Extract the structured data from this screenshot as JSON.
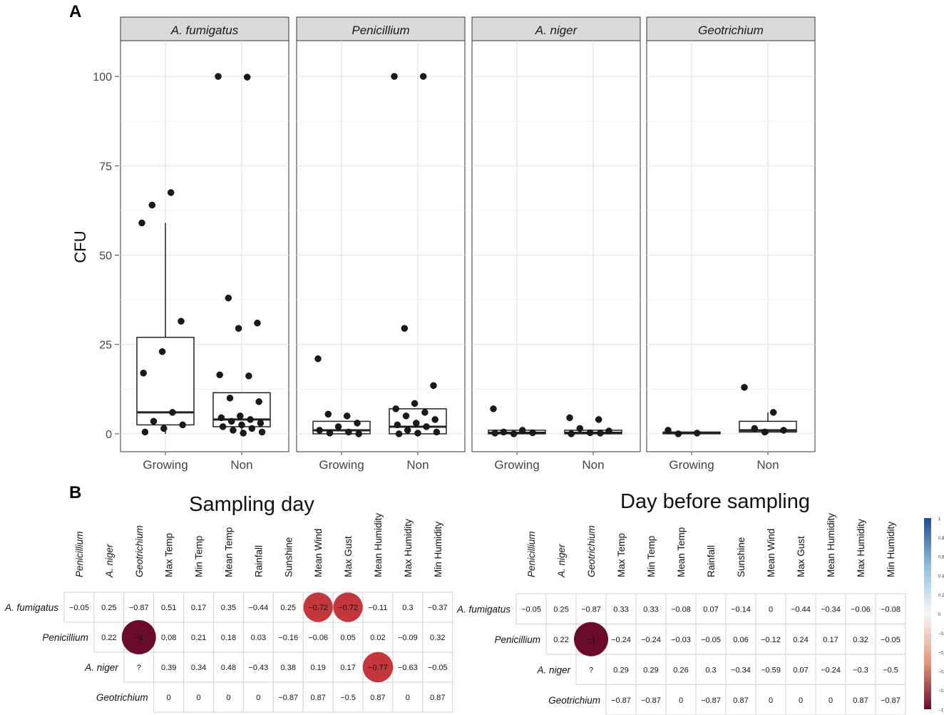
{
  "panel_labels": {
    "a": "A",
    "b": "B"
  },
  "chart_data": [
    {
      "type": "boxplot",
      "panel": "A",
      "ylabel": "CFU",
      "xlabel": "",
      "ylim": [
        -5,
        110
      ],
      "yticks": [
        0,
        25,
        50,
        75,
        100
      ],
      "grid": true,
      "categories": [
        "Growing",
        "Non"
      ],
      "facets": [
        {
          "name": "A. fumigatus",
          "groups": [
            {
              "category": "Growing",
              "q1": 2.5,
              "median": 6,
              "q3": 27,
              "whisker_low": 0,
              "whisker_high": 59,
              "points": [
                59,
                67.5,
                64,
                31.5,
                23,
                17,
                6,
                3.5,
                2.5,
                1.5,
                0.5
              ]
            },
            {
              "category": "Non",
              "q1": 2,
              "median": 4,
              "q3": 11.5,
              "whisker_low": 0,
              "whisker_high": 11.5,
              "points": [
                100,
                99.8,
                38,
                31,
                29.5,
                16.5,
                16.2,
                10,
                9,
                5,
                4.5,
                4,
                3.5,
                3,
                2.5,
                2,
                1.5,
                1,
                0.5,
                0.2
              ]
            }
          ]
        },
        {
          "name": "Penicillium",
          "groups": [
            {
              "category": "Growing",
              "q1": 0,
              "median": 1,
              "q3": 3.5,
              "whisker_low": 0,
              "whisker_high": 3.5,
              "points": [
                21,
                5,
                5.5,
                3,
                2,
                1,
                0.5,
                0.2,
                0
              ]
            },
            {
              "category": "Non",
              "q1": 0,
              "median": 2,
              "q3": 7,
              "whisker_low": 0,
              "whisker_high": 7,
              "points": [
                100,
                100,
                29.5,
                13.5,
                8.5,
                7,
                6,
                5,
                4,
                3,
                2.5,
                2,
                1,
                0.5,
                0.2,
                0
              ]
            }
          ]
        },
        {
          "name": "A. niger",
          "groups": [
            {
              "category": "Growing",
              "q1": 0,
              "median": 0.3,
              "q3": 1,
              "whisker_low": 0,
              "whisker_high": 1,
              "points": [
                7,
                1,
                0.5,
                0.3,
                0,
                0.2
              ]
            },
            {
              "category": "Non",
              "q1": 0,
              "median": 0.3,
              "q3": 1,
              "whisker_low": 0,
              "whisker_high": 1,
              "points": [
                4.5,
                4,
                1.5,
                0.8,
                0.3,
                0,
                0.2
              ]
            }
          ]
        },
        {
          "name": "Geotrichium",
          "groups": [
            {
              "category": "Growing",
              "q1": 0,
              "median": 0.2,
              "q3": 0.5,
              "whisker_low": 0,
              "whisker_high": 0.5,
              "points": [
                1,
                0.2,
                0
              ]
            },
            {
              "category": "Non",
              "q1": 0.5,
              "median": 1,
              "q3": 3.5,
              "whisker_low": 0,
              "whisker_high": 6,
              "points": [
                13,
                6,
                1.5,
                1,
                0.5
              ]
            }
          ]
        }
      ]
    },
    {
      "type": "heatmap",
      "panel": "B",
      "title": "Sampling day",
      "columns": [
        "Penicillium",
        "A. niger",
        "Geotrichium",
        "Max Temp",
        "Min Temp",
        "Mean Temp",
        "Rainfall",
        "Sunshine",
        "Mean Wind",
        "Max Gust",
        "Mean Humidity",
        "Max Humidity",
        "Min Humidity"
      ],
      "rows": [
        "A. fumigatus",
        "Penicillium",
        "A. niger",
        "Geotrichium"
      ],
      "cells": [
        [
          "−0.05",
          "0.25",
          "−0.87",
          "0.51",
          "0.17",
          "0.35",
          "−0.44",
          "0.25",
          "−0.72",
          "−0.72",
          "−0.11",
          "0.3",
          "−0.37"
        ],
        [
          null,
          "0.22",
          "−1",
          "0.08",
          "0.21",
          "0.18",
          "0.03",
          "−0.16",
          "−0.06",
          "0.05",
          "0.02",
          "−0.09",
          "0.32"
        ],
        [
          null,
          null,
          "?",
          "0.39",
          "0.34",
          "0.48",
          "−0.43",
          "0.38",
          "0.19",
          "0.17",
          "−0.77",
          "−0.63",
          "−0.05"
        ],
        [
          null,
          null,
          null,
          "0",
          "0",
          "0",
          "0",
          "−0.87",
          "0.87",
          "−0.5",
          "0.87",
          "0",
          "0.87"
        ]
      ],
      "highlights": [
        {
          "row": 0,
          "col": 8,
          "value": -0.72
        },
        {
          "row": 0,
          "col": 9,
          "value": -0.72
        },
        {
          "row": 1,
          "col": 2,
          "value": -1
        },
        {
          "row": 2,
          "col": 10,
          "value": -0.77
        }
      ]
    },
    {
      "type": "heatmap",
      "panel": "B",
      "title": "Day before sampling",
      "columns": [
        "Penicillium",
        "A. niger",
        "Geotrichium",
        "Max Temp",
        "Min Temp",
        "Mean Temp",
        "Rainfall",
        "Sunshine",
        "Mean Wind",
        "Max Gust",
        "Mean Humidity",
        "Max Humidity",
        "Min Humidity"
      ],
      "rows": [
        "A. fumigatus",
        "Penicillium",
        "A. niger",
        "Geotrichium"
      ],
      "cells": [
        [
          "−0.05",
          "0.25",
          "−0.87",
          "0.33",
          "0.33",
          "−0.08",
          "0.07",
          "−0.14",
          "0",
          "−0.44",
          "−0.34",
          "−0.06",
          "−0.08"
        ],
        [
          null,
          "0.22",
          "−1",
          "−0.24",
          "−0.24",
          "−0.03",
          "−0.05",
          "0.06",
          "−0.12",
          "0.24",
          "0.17",
          "0.32",
          "−0.05"
        ],
        [
          null,
          null,
          "?",
          "0.29",
          "0.29",
          "0.26",
          "0.3",
          "−0.34",
          "−0.59",
          "0.07",
          "−0.24",
          "−0.3",
          "−0.5"
        ],
        [
          null,
          null,
          null,
          "−0.87",
          "−0.87",
          "0",
          "−0.87",
          "0.87",
          "0",
          "0",
          "0",
          "0.87",
          "−0.87"
        ]
      ],
      "highlights": [
        {
          "row": 1,
          "col": 2,
          "value": -1
        }
      ]
    }
  ],
  "colorbar": {
    "ticks": [
      "1",
      "0.8",
      "0.6",
      "0.4",
      "0.2",
      "0",
      "−0.2",
      "−0.4",
      "−0.6",
      "−0.8",
      "−1"
    ],
    "top_color": "#1f4e8c",
    "mid_color": "#f7f7f7",
    "bottom_color": "#6b0b2b"
  }
}
